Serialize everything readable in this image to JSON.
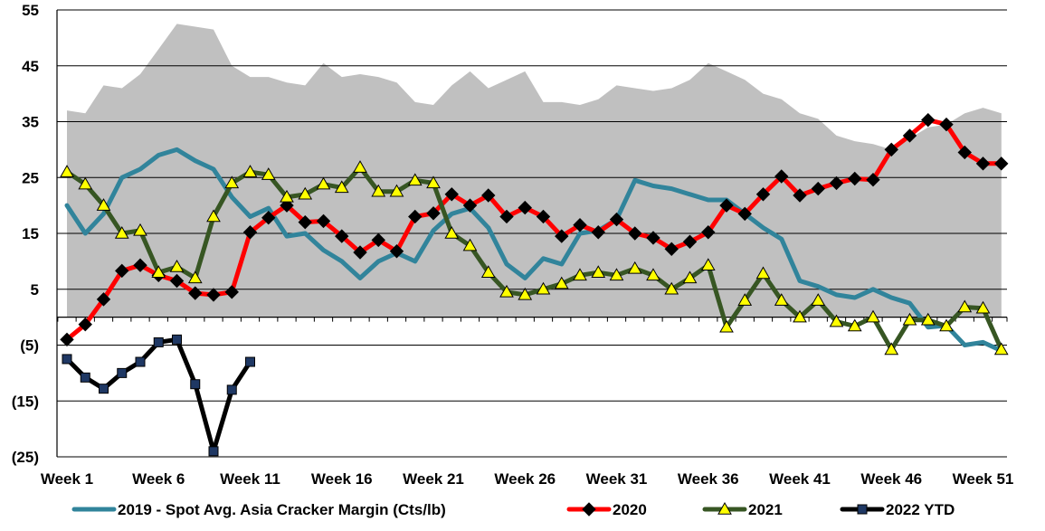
{
  "chart_data": {
    "type": "line",
    "title": "",
    "xlabel": "",
    "ylabel": "",
    "ylim": [
      -25,
      55
    ],
    "ytick_values": [
      55,
      45,
      35,
      25,
      15,
      5,
      -5,
      -15,
      -25
    ],
    "ytick_labels": [
      "55",
      "45",
      "35",
      "25",
      "15",
      "5",
      "(5)",
      "(15)",
      "(25)"
    ],
    "xtick_labels": [
      {
        "week": 1,
        "label": "Week 1"
      },
      {
        "week": 6,
        "label": "Week 6"
      },
      {
        "week": 11,
        "label": "Week 11"
      },
      {
        "week": 16,
        "label": "Week 16"
      },
      {
        "week": 21,
        "label": "Week 21"
      },
      {
        "week": 26,
        "label": "Week 26"
      },
      {
        "week": 31,
        "label": "Week 31"
      },
      {
        "week": 36,
        "label": "Week 36"
      },
      {
        "week": 41,
        "label": "Week 41"
      },
      {
        "week": 46,
        "label": "Week 46"
      },
      {
        "week": 51,
        "label": "Week 51"
      }
    ],
    "grid": "horizontal",
    "legend_position": "bottom",
    "range_band": {
      "color": "#c0c0c0",
      "upper": [
        37,
        36.5,
        41.5,
        41,
        43.5,
        48,
        52.5,
        52,
        51.5,
        45,
        43,
        43,
        42,
        41.5,
        45.5,
        43,
        43.5,
        43,
        42,
        38.5,
        38,
        41.5,
        44,
        41,
        42.5,
        44,
        38.5,
        38.5,
        38,
        39,
        41.5,
        41,
        40.5,
        41,
        42.5,
        45.5,
        44,
        42.5,
        40,
        39,
        36.5,
        35.5,
        32.5,
        31.5,
        31,
        30,
        32,
        34,
        34.5,
        36.5,
        37.5,
        36.5
      ],
      "lower": [
        0,
        0,
        0,
        0,
        0,
        0,
        0,
        0,
        0,
        0,
        0,
        0,
        0,
        0,
        0,
        0,
        0,
        0,
        0,
        0,
        0,
        0,
        0,
        0,
        0,
        0,
        0,
        0,
        0,
        0,
        0,
        0,
        0,
        0,
        0,
        0,
        0,
        0,
        0,
        0,
        0,
        0,
        0,
        0,
        0,
        0,
        0,
        0,
        0,
        0,
        0,
        0
      ]
    },
    "series": [
      {
        "name": "2019 - Spot Avg. Asia Cracker Margin (Cts/lb)",
        "color": "#31849b",
        "marker": "none",
        "x": [
          1,
          2,
          3,
          4,
          5,
          6,
          7,
          8,
          9,
          10,
          11,
          12,
          13,
          14,
          15,
          16,
          17,
          18,
          19,
          20,
          21,
          22,
          23,
          24,
          25,
          26,
          27,
          28,
          29,
          30,
          31,
          32,
          33,
          34,
          35,
          36,
          37,
          38,
          39,
          40,
          41,
          42,
          43,
          44,
          45,
          46,
          47,
          48,
          49,
          50,
          51,
          52
        ],
        "values": [
          20,
          15,
          18.5,
          25,
          26.5,
          29,
          30,
          28,
          26.5,
          21.5,
          18,
          19.5,
          14.5,
          15,
          12,
          10,
          7,
          10,
          11.5,
          10,
          15.5,
          18.5,
          19.5,
          16,
          9.5,
          7,
          10.5,
          9.5,
          15,
          15.5,
          17.5,
          24.5,
          23.5,
          23,
          22,
          21,
          21,
          18.5,
          16,
          14,
          6.5,
          5.5,
          4,
          3.5,
          5,
          3.5,
          2.5,
          -1.8,
          -1.5,
          -5,
          -4.5,
          -6
        ]
      },
      {
        "name": "2020",
        "color": "#ff0000",
        "marker": "diamond",
        "marker_color": "#000000",
        "x": [
          1,
          2,
          3,
          4,
          5,
          6,
          7,
          8,
          9,
          10,
          11,
          12,
          13,
          14,
          15,
          16,
          17,
          18,
          19,
          20,
          21,
          22,
          23,
          24,
          25,
          26,
          27,
          28,
          29,
          30,
          31,
          32,
          33,
          34,
          35,
          36,
          37,
          38,
          39,
          40,
          41,
          42,
          43,
          44,
          45,
          46,
          47,
          48,
          49,
          50,
          51,
          52
        ],
        "values": [
          -4,
          -1.3,
          3.2,
          8.3,
          9.3,
          7.5,
          6.5,
          4.3,
          4,
          4.5,
          15.2,
          17.8,
          20,
          17,
          17.2,
          14.5,
          11.6,
          13.8,
          11.8,
          18,
          18.6,
          22,
          20,
          21.8,
          18,
          19.6,
          18,
          14.5,
          16.5,
          15.2,
          17.5,
          15,
          14.2,
          12.2,
          13.5,
          15.2,
          20,
          18.5,
          22,
          25.2,
          21.8,
          23,
          24,
          24.8,
          24.6,
          30,
          32.5,
          35.3,
          34.5,
          29.5,
          27.5,
          27.5
        ]
      },
      {
        "name": "2021",
        "color": "#375623",
        "marker": "triangle",
        "marker_color": "#ffff00",
        "x": [
          1,
          2,
          3,
          4,
          5,
          6,
          7,
          8,
          9,
          10,
          11,
          12,
          13,
          14,
          15,
          16,
          17,
          18,
          19,
          20,
          21,
          22,
          23,
          24,
          25,
          26,
          27,
          28,
          29,
          30,
          31,
          32,
          33,
          34,
          35,
          36,
          37,
          38,
          39,
          40,
          41,
          42,
          43,
          44,
          45,
          46,
          47,
          48,
          49,
          50,
          51,
          52
        ],
        "values": [
          26,
          23.8,
          20,
          15,
          15.5,
          8,
          9,
          7,
          18,
          24,
          26,
          25.5,
          21.5,
          22,
          23.8,
          23.2,
          26.8,
          22.5,
          22.5,
          24.5,
          24,
          15,
          12.8,
          8,
          4.5,
          4,
          5,
          6,
          7.5,
          8,
          7.5,
          8.7,
          7.5,
          5,
          7,
          9.3,
          -1.8,
          3,
          7.8,
          3,
          0,
          3,
          -0.8,
          -1.6,
          0,
          -5.8,
          -0.5,
          -0.5,
          -1.6,
          1.8,
          1.6,
          -5.8
        ]
      },
      {
        "name": "2022 YTD",
        "color": "#000000",
        "marker": "square",
        "marker_color": "#1f3864",
        "x": [
          1,
          2,
          3,
          4,
          5,
          6,
          7,
          8,
          9,
          10,
          11
        ],
        "values": [
          -7.5,
          -10.8,
          -12.8,
          -10,
          -8,
          -4.5,
          -4,
          -12,
          -24,
          -13,
          -8
        ]
      }
    ]
  }
}
